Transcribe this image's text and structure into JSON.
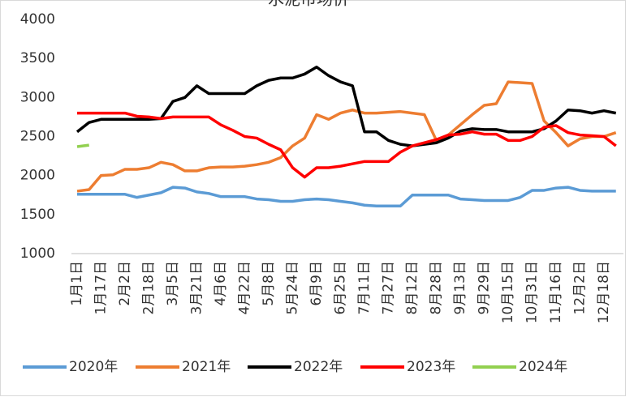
{
  "chart_data": {
    "type": "line",
    "title": "水泥市场价",
    "categories": [
      "1月1日",
      null,
      "1月17日",
      null,
      "2月2日",
      null,
      "2月18日",
      null,
      "3月5日",
      null,
      "3月21日",
      null,
      "4月6日",
      null,
      "4月22日",
      null,
      "5月8日",
      null,
      "5月24日",
      null,
      "6月9日",
      null,
      "6月25日",
      null,
      "7月11日",
      null,
      "7月27日",
      null,
      "8月12日",
      null,
      "8月28日",
      null,
      "9月13日",
      null,
      "9月29日",
      null,
      "10月15日",
      null,
      "10月31日",
      null,
      "11月16日",
      null,
      "12月2日",
      null,
      "12月18日",
      null
    ],
    "series": [
      {
        "name": "2020年",
        "color": "#5b9bd5",
        "values": [
          1760,
          1760,
          1760,
          1760,
          1760,
          1720,
          1750,
          1780,
          1850,
          1840,
          1790,
          1770,
          1730,
          1730,
          1730,
          1700,
          1690,
          1670,
          1670,
          1690,
          1700,
          1690,
          1670,
          1650,
          1620,
          1610,
          1610,
          1610,
          1750,
          1750,
          1750,
          1750,
          1700,
          1690,
          1680,
          1680,
          1680,
          1720,
          1810,
          1810,
          1840,
          1850,
          1810,
          1800,
          1800,
          1800
        ]
      },
      {
        "name": "2021年",
        "color": "#ed7d31",
        "values": [
          1800,
          1820,
          2000,
          2010,
          2080,
          2080,
          2100,
          2170,
          2140,
          2060,
          2060,
          2100,
          2110,
          2110,
          2120,
          2140,
          2170,
          2230,
          2380,
          2480,
          2780,
          2720,
          2800,
          2840,
          2800,
          2800,
          2810,
          2820,
          2800,
          2780,
          2450,
          2520,
          2650,
          2780,
          2900,
          2920,
          3200,
          3190,
          3180,
          2700,
          2550,
          2380,
          2470,
          2500,
          2500,
          2550
        ]
      },
      {
        "name": "2022年",
        "color": "#000000",
        "values": [
          2560,
          2680,
          2720,
          2720,
          2720,
          2720,
          2720,
          2730,
          2950,
          3000,
          3150,
          3050,
          3050,
          3050,
          3050,
          3150,
          3220,
          3250,
          3250,
          3300,
          3390,
          3280,
          3200,
          3150,
          2560,
          2560,
          2450,
          2400,
          2380,
          2400,
          2420,
          2480,
          2570,
          2600,
          2590,
          2590,
          2560,
          2560,
          2560,
          2600,
          2700,
          2840,
          2830,
          2800,
          2830,
          2800
        ]
      },
      {
        "name": "2023年",
        "color": "#ff0000",
        "values": [
          2800,
          2800,
          2800,
          2800,
          2800,
          2760,
          2750,
          2730,
          2750,
          2750,
          2750,
          2750,
          2650,
          2580,
          2500,
          2480,
          2400,
          2330,
          2100,
          1980,
          2100,
          2100,
          2120,
          2150,
          2180,
          2180,
          2180,
          2300,
          2380,
          2420,
          2460,
          2520,
          2530,
          2560,
          2530,
          2530,
          2450,
          2450,
          2500,
          2620,
          2640,
          2550,
          2520,
          2510,
          2500,
          2380
        ]
      },
      {
        "name": "2024年",
        "color": "#92d050",
        "values": [
          2370,
          2390,
          null,
          null,
          null,
          null,
          null,
          null,
          null,
          null,
          null,
          null,
          null,
          null,
          null,
          null,
          null,
          null,
          null,
          null,
          null,
          null,
          null,
          null,
          null,
          null,
          null,
          null,
          null,
          null,
          null,
          null,
          null,
          null,
          null,
          null,
          null,
          null,
          null,
          null,
          null,
          null,
          null,
          null,
          null,
          null
        ]
      }
    ],
    "ylim": [
      1000,
      4000
    ],
    "yticks": [
      1000,
      1500,
      2000,
      2500,
      3000,
      3500,
      4000
    ],
    "grid": false
  }
}
